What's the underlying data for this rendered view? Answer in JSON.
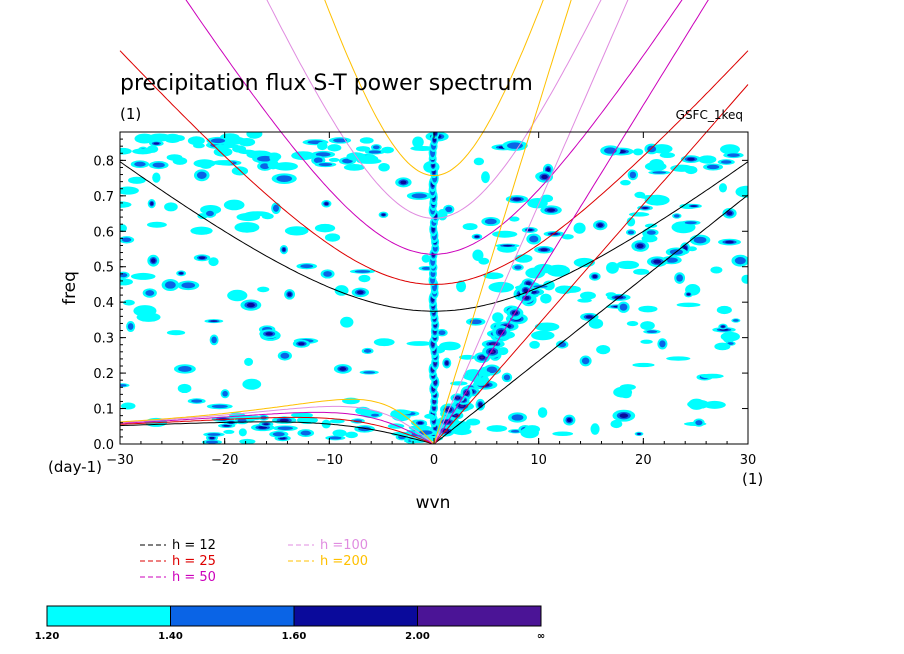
{
  "chart_data": {
    "type": "heatmap",
    "title": "precipitation flux S-T power spectrum",
    "subtitle": "(1)",
    "model_label": "GSFC_1keq",
    "xlabel": "wvn",
    "ylabel": "freq",
    "x_unit": "(1)",
    "y_unit": "(day-1)",
    "xlim": [
      -30,
      30
    ],
    "ylim": [
      0,
      0.88
    ],
    "x_ticks": [
      -30,
      -20,
      -10,
      0,
      10,
      20,
      30
    ],
    "x_tick_labels": [
      "−30",
      "−20",
      "−10",
      "0",
      "10",
      "20",
      "30"
    ],
    "y_ticks": [
      0,
      0.1,
      0.2,
      0.3,
      0.4,
      0.5,
      0.6,
      0.7,
      0.8
    ],
    "y_tick_labels": [
      "0.0",
      "0.1",
      "0.2",
      "0.3",
      "0.4",
      "0.5",
      "0.6",
      "0.7",
      "0.8"
    ],
    "colorbar": {
      "levels": [
        "1.20",
        "1.40",
        "1.60",
        "2.00",
        "∞"
      ],
      "colors": [
        "#00ffff",
        "#0a64e6",
        "#0a0a9b",
        "#4b1496"
      ]
    },
    "series": [
      {
        "name": "h = 12",
        "h": 12,
        "color": "#000000"
      },
      {
        "name": "h = 25",
        "h": 25,
        "color": "#dd0000"
      },
      {
        "name": "h = 50",
        "h": 50,
        "color": "#cc00bb"
      },
      {
        "name": "h =100",
        "h": 100,
        "color": "#e08ce0"
      },
      {
        "name": "h =200",
        "h": 200,
        "color": "#ffc000"
      }
    ]
  }
}
